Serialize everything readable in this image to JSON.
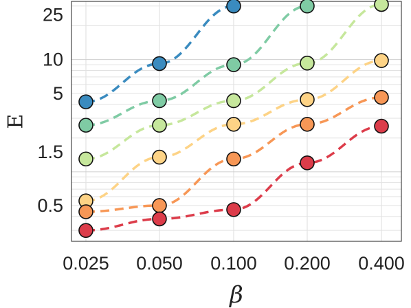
{
  "chart_data": {
    "type": "line",
    "xlabel": "β",
    "ylabel": "E",
    "x_scale": "categorical",
    "y_scale": "log",
    "ylim": [
      0.24,
      33
    ],
    "grid": true,
    "legend": "none",
    "categories": [
      "0.025",
      "0.050",
      "0.100",
      "0.200",
      "0.400"
    ],
    "y_ticks": [
      0.5,
      1.5,
      5,
      10,
      25
    ],
    "y_tick_labels": [
      "0.5",
      "1.5",
      "5",
      "10",
      "25"
    ],
    "line_style": "dashed",
    "series": [
      {
        "color": "#3a8bbf",
        "values": [
          4.2,
          9.2,
          30,
          null,
          null
        ]
      },
      {
        "color": "#7fcba4",
        "values": [
          2.6,
          4.3,
          9.0,
          30,
          null
        ]
      },
      {
        "color": "#c6e79c",
        "values": [
          1.3,
          2.6,
          4.3,
          9.3,
          31
        ]
      },
      {
        "color": "#fdd386",
        "values": [
          0.55,
          1.35,
          2.65,
          4.4,
          9.8
        ]
      },
      {
        "color": "#f79756",
        "values": [
          0.44,
          0.5,
          1.3,
          2.65,
          4.6
        ]
      },
      {
        "color": "#dc3c4a",
        "values": [
          0.3,
          0.38,
          0.46,
          1.2,
          2.55
        ]
      }
    ]
  }
}
